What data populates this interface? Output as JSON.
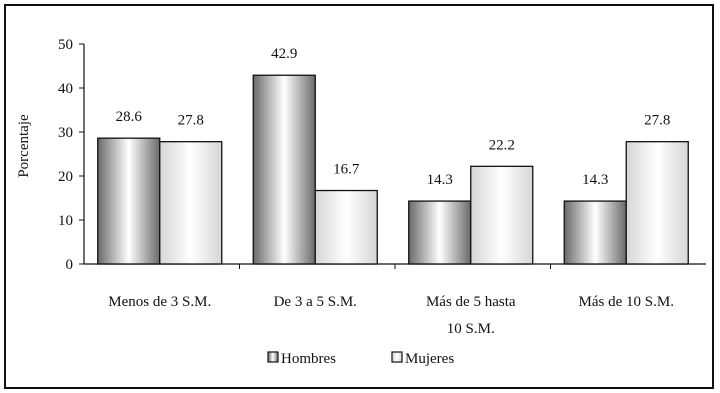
{
  "chart_data": {
    "type": "bar",
    "title": "",
    "xlabel": "",
    "ylabel": "Porcentaje",
    "ylim": [
      0,
      50
    ],
    "yticks": [
      0,
      10,
      20,
      30,
      40,
      50
    ],
    "grid": false,
    "legend_position": "bottom",
    "categories": [
      [
        "Menos de 3 S.M."
      ],
      [
        "De 3 a 5 S.M."
      ],
      [
        "Más de 5 hasta",
        "10 S.M."
      ],
      [
        "Más de 10 S.M."
      ]
    ],
    "series": [
      {
        "name": "Hombres",
        "values": [
          28.6,
          42.9,
          14.3,
          14.3
        ],
        "colors": {
          "edge": "#2a2a2a",
          "mid": "#ffffff",
          "dark": "#6a6a6a"
        }
      },
      {
        "name": "Mujeres",
        "values": [
          27.8,
          16.7,
          22.2,
          27.8
        ],
        "colors": {
          "edge": "#9a9a9a",
          "mid": "#ffffff",
          "dark": "#d6d6d6"
        }
      }
    ],
    "data_labels": [
      [
        "28.6",
        "42.9",
        "14.3",
        "14.3"
      ],
      [
        "27.8",
        "16.7",
        "22.2",
        "27.8"
      ]
    ]
  }
}
